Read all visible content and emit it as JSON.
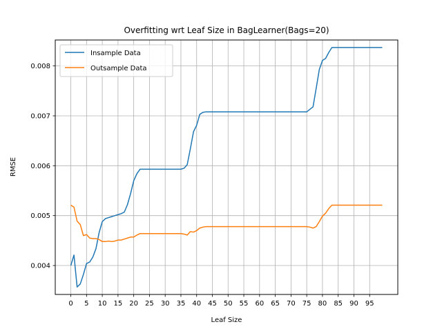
{
  "chart_data": {
    "type": "line",
    "title": "Overfitting wrt Leaf Size in BagLearner(Bags=20)",
    "xlabel": "Leaf Size",
    "ylabel": "RMSE",
    "xlim": [
      -4.95,
      103.95
    ],
    "ylim": [
      0.00342,
      0.00852
    ],
    "xticks": [
      0,
      5,
      10,
      15,
      20,
      25,
      30,
      35,
      40,
      45,
      50,
      55,
      60,
      65,
      70,
      75,
      80,
      85,
      90,
      95
    ],
    "xtick_labels": [
      "0",
      "5",
      "10",
      "15",
      "20",
      "25",
      "30",
      "35",
      "40",
      "45",
      "50",
      "55",
      "60",
      "65",
      "70",
      "75",
      "80",
      "85",
      "90",
      "95"
    ],
    "yticks": [
      0.004,
      0.005,
      0.006,
      0.007,
      0.008
    ],
    "ytick_labels": [
      "0.004",
      "0.005",
      "0.006",
      "0.007",
      "0.008"
    ],
    "grid": true,
    "legend_position": "top-left",
    "series": [
      {
        "name": "Insample Data",
        "color": "#1f77b4",
        "points": [
          [
            0,
            0.004
          ],
          [
            1,
            0.00421
          ],
          [
            2,
            0.00357
          ],
          [
            3,
            0.00363
          ],
          [
            4,
            0.00382
          ],
          [
            5,
            0.00404
          ],
          [
            6,
            0.00407
          ],
          [
            7,
            0.00417
          ],
          [
            8,
            0.00434
          ],
          [
            9,
            0.00466
          ],
          [
            10,
            0.00488
          ],
          [
            11,
            0.00494
          ],
          [
            12,
            0.00496
          ],
          [
            13,
            0.00498
          ],
          [
            14,
            0.005
          ],
          [
            15,
            0.00502
          ],
          [
            16,
            0.00504
          ],
          [
            17,
            0.00507
          ],
          [
            18,
            0.00522
          ],
          [
            19,
            0.00544
          ],
          [
            20,
            0.0057
          ],
          [
            21,
            0.00584
          ],
          [
            22,
            0.00593
          ],
          [
            25,
            0.00593
          ],
          [
            30,
            0.00593
          ],
          [
            35,
            0.00593
          ],
          [
            36,
            0.00595
          ],
          [
            37,
            0.00602
          ],
          [
            38,
            0.00634
          ],
          [
            39,
            0.00668
          ],
          [
            40,
            0.00681
          ],
          [
            41,
            0.00703
          ],
          [
            42,
            0.00707
          ],
          [
            43,
            0.00708
          ],
          [
            50,
            0.00708
          ],
          [
            60,
            0.00708
          ],
          [
            70,
            0.00708
          ],
          [
            75,
            0.00708
          ],
          [
            76,
            0.00713
          ],
          [
            77,
            0.00718
          ],
          [
            78,
            0.00755
          ],
          [
            79,
            0.00793
          ],
          [
            80,
            0.00811
          ],
          [
            81,
            0.00815
          ],
          [
            82,
            0.00827
          ],
          [
            83,
            0.00837
          ],
          [
            90,
            0.00837
          ],
          [
            99,
            0.00837
          ]
        ]
      },
      {
        "name": "Outsample Data",
        "color": "#ff7f0e",
        "points": [
          [
            0,
            0.00521
          ],
          [
            1,
            0.00517
          ],
          [
            2,
            0.00489
          ],
          [
            3,
            0.00482
          ],
          [
            4,
            0.0046
          ],
          [
            5,
            0.00462
          ],
          [
            6,
            0.00455
          ],
          [
            7,
            0.00454
          ],
          [
            8,
            0.00454
          ],
          [
            9,
            0.00452
          ],
          [
            10,
            0.00448
          ],
          [
            11,
            0.00448
          ],
          [
            12,
            0.00449
          ],
          [
            13,
            0.00448
          ],
          [
            14,
            0.00449
          ],
          [
            15,
            0.00451
          ],
          [
            16,
            0.00451
          ],
          [
            17,
            0.00453
          ],
          [
            18,
            0.00455
          ],
          [
            19,
            0.00457
          ],
          [
            20,
            0.00457
          ],
          [
            21,
            0.00461
          ],
          [
            22,
            0.00464
          ],
          [
            25,
            0.00464
          ],
          [
            30,
            0.00464
          ],
          [
            35,
            0.00464
          ],
          [
            36,
            0.00463
          ],
          [
            37,
            0.00461
          ],
          [
            38,
            0.00468
          ],
          [
            39,
            0.00467
          ],
          [
            40,
            0.0047
          ],
          [
            41,
            0.00475
          ],
          [
            42,
            0.00477
          ],
          [
            43,
            0.00478
          ],
          [
            50,
            0.00478
          ],
          [
            60,
            0.00478
          ],
          [
            70,
            0.00478
          ],
          [
            75,
            0.00478
          ],
          [
            76,
            0.00477
          ],
          [
            77,
            0.00475
          ],
          [
            78,
            0.00478
          ],
          [
            79,
            0.00488
          ],
          [
            80,
            0.00499
          ],
          [
            81,
            0.00505
          ],
          [
            82,
            0.00514
          ],
          [
            83,
            0.00521
          ],
          [
            90,
            0.00521
          ],
          [
            99,
            0.00521
          ]
        ]
      }
    ]
  }
}
